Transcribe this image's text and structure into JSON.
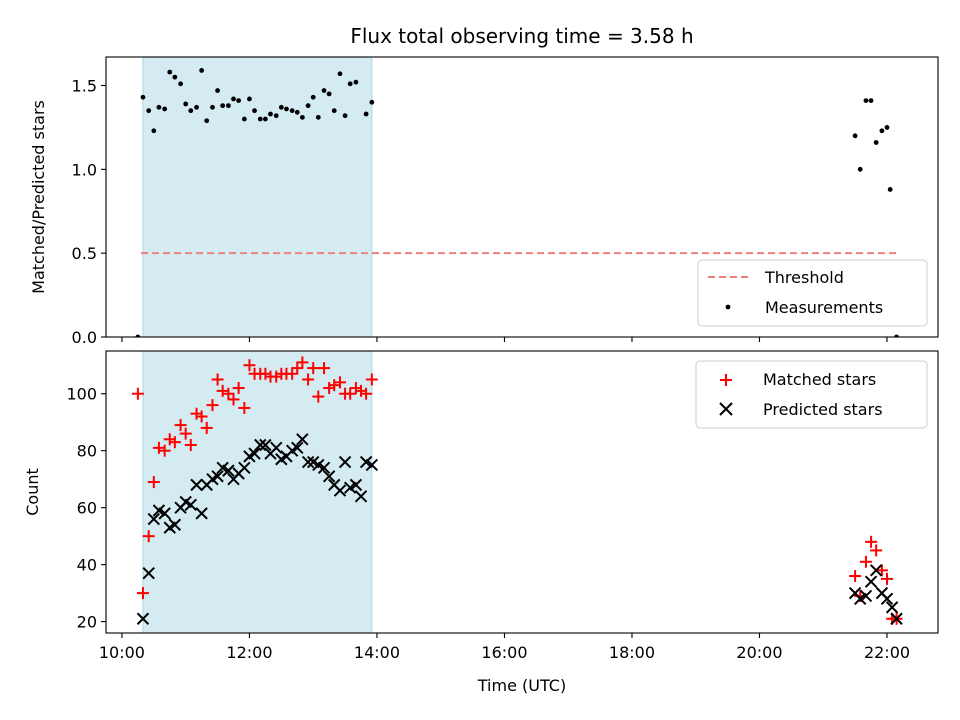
{
  "chart_data": {
    "type": "scatter",
    "title": "Flux total observing time = 3.58 h",
    "xlabel": "Time (UTC)",
    "x_unit": "hours UTC",
    "xlim": [
      9.75,
      22.8
    ],
    "xticks": [
      {
        "value": 10,
        "label": "10:00"
      },
      {
        "value": 12,
        "label": "12:00"
      },
      {
        "value": 14,
        "label": "14:00"
      },
      {
        "value": 16,
        "label": "16:00"
      },
      {
        "value": 18,
        "label": "18:00"
      },
      {
        "value": 20,
        "label": "20:00"
      },
      {
        "value": 22,
        "label": "22:00"
      }
    ],
    "highlight_span": {
      "x_start": 10.33,
      "x_end": 13.92,
      "color": "#d4ebf1"
    },
    "panels": [
      {
        "id": "ratio",
        "ylabel": "Matched/Predicted stars",
        "ylim": [
          0,
          1.67
        ],
        "yticks": [
          {
            "value": 0,
            "label": "0.0"
          },
          {
            "value": 0.5,
            "label": "0.5"
          },
          {
            "value": 1.0,
            "label": "1.0"
          },
          {
            "value": 1.5,
            "label": "1.5"
          }
        ],
        "legend_position": "lower-right",
        "threshold": {
          "name": "Threshold",
          "y": 0.5,
          "x_start": 10.3,
          "x_end": 22.18,
          "color": "#f08080"
        },
        "series": [
          {
            "name": "Measurements",
            "marker": "dot",
            "color": "#000000",
            "points": [
              [
                10.25,
                0.0
              ],
              [
                10.33,
                1.43
              ],
              [
                10.42,
                1.35
              ],
              [
                10.5,
                1.23
              ],
              [
                10.58,
                1.37
              ],
              [
                10.67,
                1.36
              ],
              [
                10.75,
                1.58
              ],
              [
                10.83,
                1.55
              ],
              [
                10.92,
                1.51
              ],
              [
                11.0,
                1.39
              ],
              [
                11.08,
                1.35
              ],
              [
                11.17,
                1.37
              ],
              [
                11.25,
                1.59
              ],
              [
                11.33,
                1.29
              ],
              [
                11.42,
                1.37
              ],
              [
                11.5,
                1.47
              ],
              [
                11.58,
                1.38
              ],
              [
                11.67,
                1.38
              ],
              [
                11.75,
                1.42
              ],
              [
                11.83,
                1.41
              ],
              [
                11.92,
                1.3
              ],
              [
                12.0,
                1.42
              ],
              [
                12.08,
                1.35
              ],
              [
                12.17,
                1.3
              ],
              [
                12.25,
                1.3
              ],
              [
                12.33,
                1.33
              ],
              [
                12.42,
                1.32
              ],
              [
                12.5,
                1.37
              ],
              [
                12.58,
                1.36
              ],
              [
                12.67,
                1.35
              ],
              [
                12.75,
                1.34
              ],
              [
                12.83,
                1.31
              ],
              [
                12.92,
                1.38
              ],
              [
                13.0,
                1.43
              ],
              [
                13.08,
                1.31
              ],
              [
                13.17,
                1.47
              ],
              [
                13.25,
                1.45
              ],
              [
                13.33,
                1.35
              ],
              [
                13.42,
                1.57
              ],
              [
                13.5,
                1.32
              ],
              [
                13.58,
                1.51
              ],
              [
                13.67,
                1.52
              ],
              [
                13.83,
                1.33
              ],
              [
                13.92,
                1.4
              ],
              [
                21.5,
                1.2
              ],
              [
                21.58,
                1.0
              ],
              [
                21.67,
                1.41
              ],
              [
                21.75,
                1.41
              ],
              [
                21.83,
                1.16
              ],
              [
                21.92,
                1.23
              ],
              [
                22.0,
                1.25
              ],
              [
                22.05,
                0.88
              ],
              [
                22.15,
                0.0
              ]
            ]
          }
        ]
      },
      {
        "id": "count",
        "ylabel": "Count",
        "ylim": [
          16,
          115
        ],
        "yticks": [
          {
            "value": 20,
            "label": "20"
          },
          {
            "value": 40,
            "label": "40"
          },
          {
            "value": 60,
            "label": "60"
          },
          {
            "value": 80,
            "label": "80"
          },
          {
            "value": 100,
            "label": "100"
          }
        ],
        "legend_position": "upper-right",
        "series": [
          {
            "name": "Matched stars",
            "marker": "plus",
            "color": "#ff0000",
            "points": [
              [
                10.25,
                100
              ],
              [
                10.33,
                30
              ],
              [
                10.42,
                50
              ],
              [
                10.5,
                69
              ],
              [
                10.58,
                81
              ],
              [
                10.67,
                80
              ],
              [
                10.75,
                84
              ],
              [
                10.83,
                83
              ],
              [
                10.92,
                89
              ],
              [
                11.0,
                86
              ],
              [
                11.08,
                82
              ],
              [
                11.17,
                93
              ],
              [
                11.25,
                92
              ],
              [
                11.33,
                88
              ],
              [
                11.42,
                96
              ],
              [
                11.5,
                105
              ],
              [
                11.58,
                101
              ],
              [
                11.67,
                100
              ],
              [
                11.75,
                98
              ],
              [
                11.83,
                102
              ],
              [
                11.92,
                95
              ],
              [
                12.0,
                110
              ],
              [
                12.08,
                107
              ],
              [
                12.17,
                107
              ],
              [
                12.25,
                107
              ],
              [
                12.33,
                106
              ],
              [
                12.42,
                106
              ],
              [
                12.5,
                107
              ],
              [
                12.58,
                107
              ],
              [
                12.67,
                107
              ],
              [
                12.75,
                109
              ],
              [
                12.83,
                111
              ],
              [
                12.92,
                105
              ],
              [
                13.0,
                109
              ],
              [
                13.08,
                99
              ],
              [
                13.17,
                109
              ],
              [
                13.25,
                102
              ],
              [
                13.33,
                103
              ],
              [
                13.42,
                104
              ],
              [
                13.5,
                100
              ],
              [
                13.58,
                100
              ],
              [
                13.67,
                102
              ],
              [
                13.75,
                101
              ],
              [
                13.83,
                100
              ],
              [
                13.92,
                105
              ],
              [
                21.5,
                36
              ],
              [
                21.58,
                29
              ],
              [
                21.67,
                41
              ],
              [
                21.75,
                48
              ],
              [
                21.83,
                45
              ],
              [
                21.92,
                38
              ],
              [
                22.0,
                35
              ],
              [
                22.08,
                21
              ],
              [
                22.15,
                21
              ]
            ]
          },
          {
            "name": "Predicted stars",
            "marker": "cross",
            "color": "#000000",
            "points": [
              [
                10.33,
                21
              ],
              [
                10.42,
                37
              ],
              [
                10.5,
                56
              ],
              [
                10.58,
                59
              ],
              [
                10.67,
                58
              ],
              [
                10.75,
                53
              ],
              [
                10.83,
                54
              ],
              [
                10.92,
                60
              ],
              [
                11.0,
                62
              ],
              [
                11.08,
                61
              ],
              [
                11.17,
                68
              ],
              [
                11.25,
                58
              ],
              [
                11.33,
                68
              ],
              [
                11.42,
                70
              ],
              [
                11.5,
                71
              ],
              [
                11.58,
                74
              ],
              [
                11.67,
                73
              ],
              [
                11.75,
                70
              ],
              [
                11.83,
                72
              ],
              [
                11.92,
                74
              ],
              [
                12.0,
                78
              ],
              [
                12.08,
                79
              ],
              [
                12.17,
                82
              ],
              [
                12.25,
                82
              ],
              [
                12.33,
                79
              ],
              [
                12.42,
                81
              ],
              [
                12.5,
                77
              ],
              [
                12.58,
                78
              ],
              [
                12.67,
                80
              ],
              [
                12.75,
                81
              ],
              [
                12.83,
                84
              ],
              [
                12.92,
                76
              ],
              [
                13.0,
                76
              ],
              [
                13.08,
                75
              ],
              [
                13.17,
                74
              ],
              [
                13.25,
                71
              ],
              [
                13.33,
                68
              ],
              [
                13.42,
                66
              ],
              [
                13.5,
                76
              ],
              [
                13.58,
                67
              ],
              [
                13.67,
                68
              ],
              [
                13.75,
                64
              ],
              [
                13.83,
                76
              ],
              [
                13.92,
                75
              ],
              [
                21.5,
                30
              ],
              [
                21.58,
                28
              ],
              [
                21.67,
                29
              ],
              [
                21.75,
                34
              ],
              [
                21.83,
                38
              ],
              [
                21.92,
                30
              ],
              [
                22.0,
                28
              ],
              [
                22.08,
                25
              ],
              [
                22.15,
                21
              ]
            ]
          }
        ]
      }
    ]
  }
}
